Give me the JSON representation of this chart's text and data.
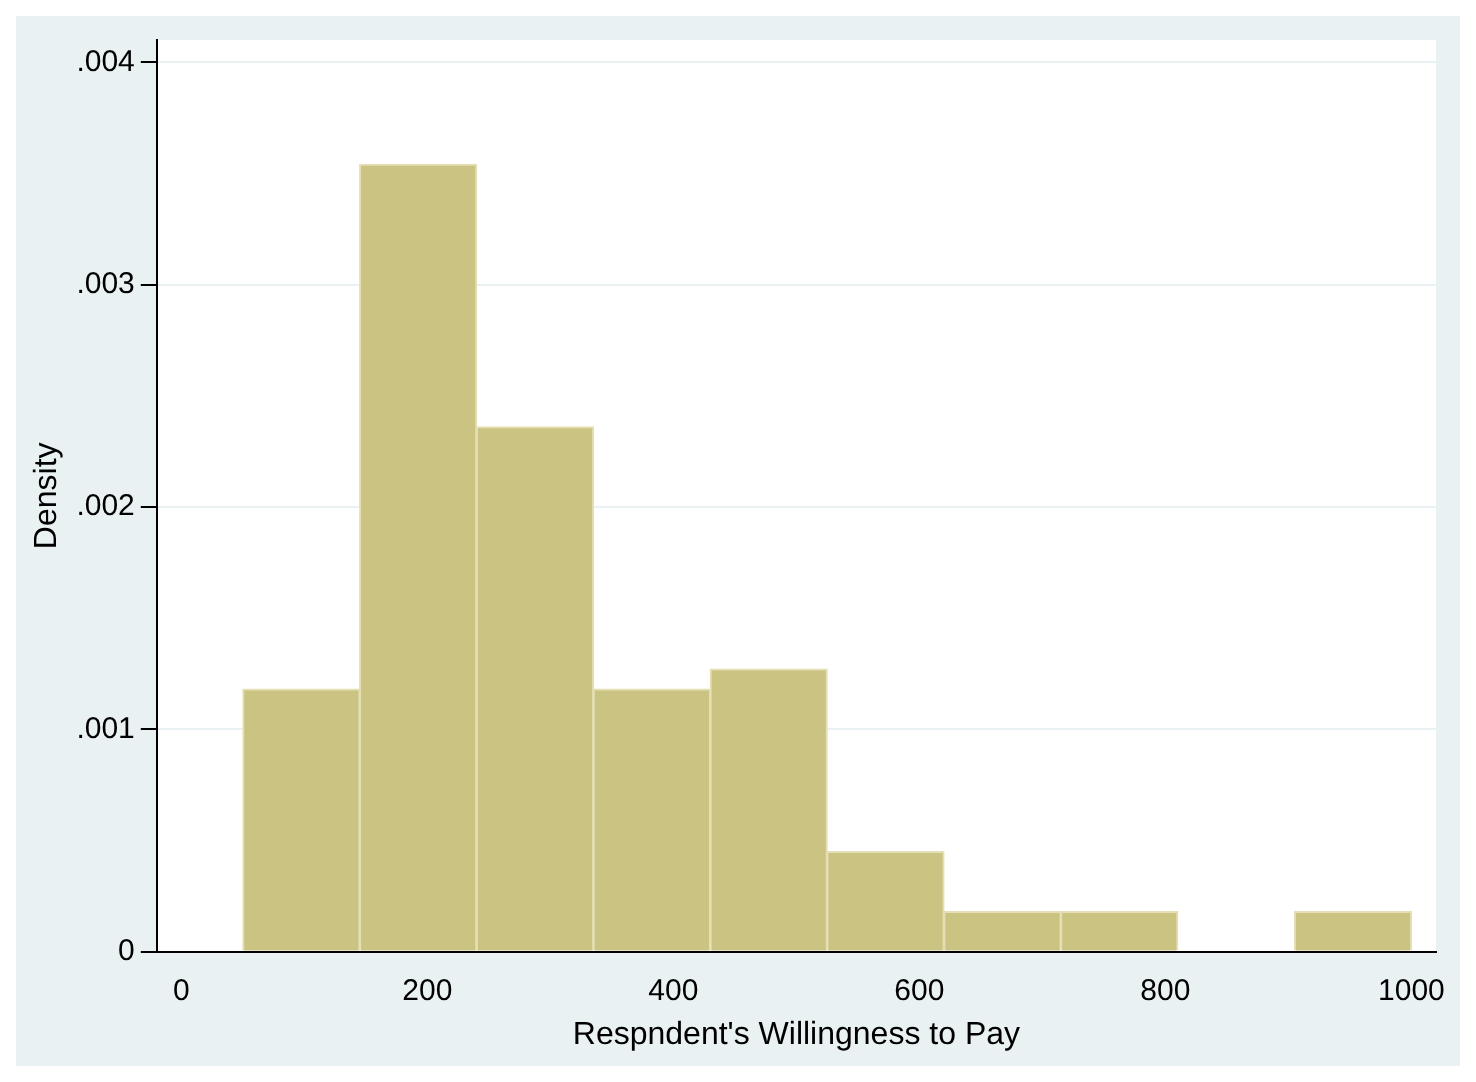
{
  "chart_data": {
    "type": "histogram",
    "xlabel": "Respndent's Willingness to Pay",
    "ylabel": "Density",
    "bins": [
      50,
      145,
      240,
      335,
      430,
      525,
      620,
      715,
      810,
      905,
      1000
    ],
    "values": [
      0.00118,
      0.00354,
      0.00236,
      0.00118,
      0.00127,
      0.00045,
      0.00018,
      0.00018,
      0,
      0.00018
    ],
    "color": "#cbc382",
    "xlim": [
      -20,
      1020
    ],
    "xticks": [
      0,
      200,
      400,
      600,
      800,
      1000
    ],
    "ylim": [
      0,
      0.0041
    ],
    "yticks": [
      0,
      {
        "value": 0.001,
        "label": ".001"
      },
      {
        "value": 0.002,
        "label": ".002"
      },
      {
        "value": 0.003,
        "label": ".003"
      },
      {
        "value": 0.004,
        "label": ".004"
      }
    ],
    "grid": "y",
    "legend": false
  }
}
